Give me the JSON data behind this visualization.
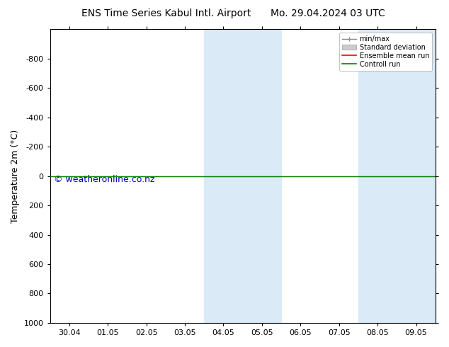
{
  "title_left": "ENS Time Series Kabul Intl. Airport",
  "title_right": "Mo. 29.04.2024 03 UTC",
  "ylabel": "Temperature 2m (°C)",
  "watermark": "© weatheronline.co.nz",
  "ylim_bottom": 1000,
  "ylim_top": -1000,
  "yticks": [
    -800,
    -600,
    -400,
    -200,
    0,
    200,
    400,
    600,
    800,
    1000
  ],
  "xtick_labels": [
    "30.04",
    "01.05",
    "02.05",
    "03.05",
    "04.05",
    "05.05",
    "06.05",
    "07.05",
    "08.05",
    "09.05"
  ],
  "xtick_positions": [
    0,
    1,
    2,
    3,
    4,
    5,
    6,
    7,
    8,
    9
  ],
  "shaded_bands": [
    [
      3.5,
      4.5
    ],
    [
      4.5,
      5.5
    ],
    [
      7.5,
      8.5
    ],
    [
      8.5,
      9.5
    ]
  ],
  "shaded_color": "#daeaf7",
  "control_run_color": "#008000",
  "ensemble_mean_color": "#ff0000",
  "bg_color": "#ffffff",
  "plot_bg_color": "#ffffff",
  "legend_items": [
    "min/max",
    "Standard deviation",
    "Ensemble mean run",
    "Controll run"
  ],
  "title_fontsize": 10,
  "axis_fontsize": 9,
  "tick_fontsize": 8,
  "watermark_color": "#0000cc",
  "watermark_fontsize": 9
}
